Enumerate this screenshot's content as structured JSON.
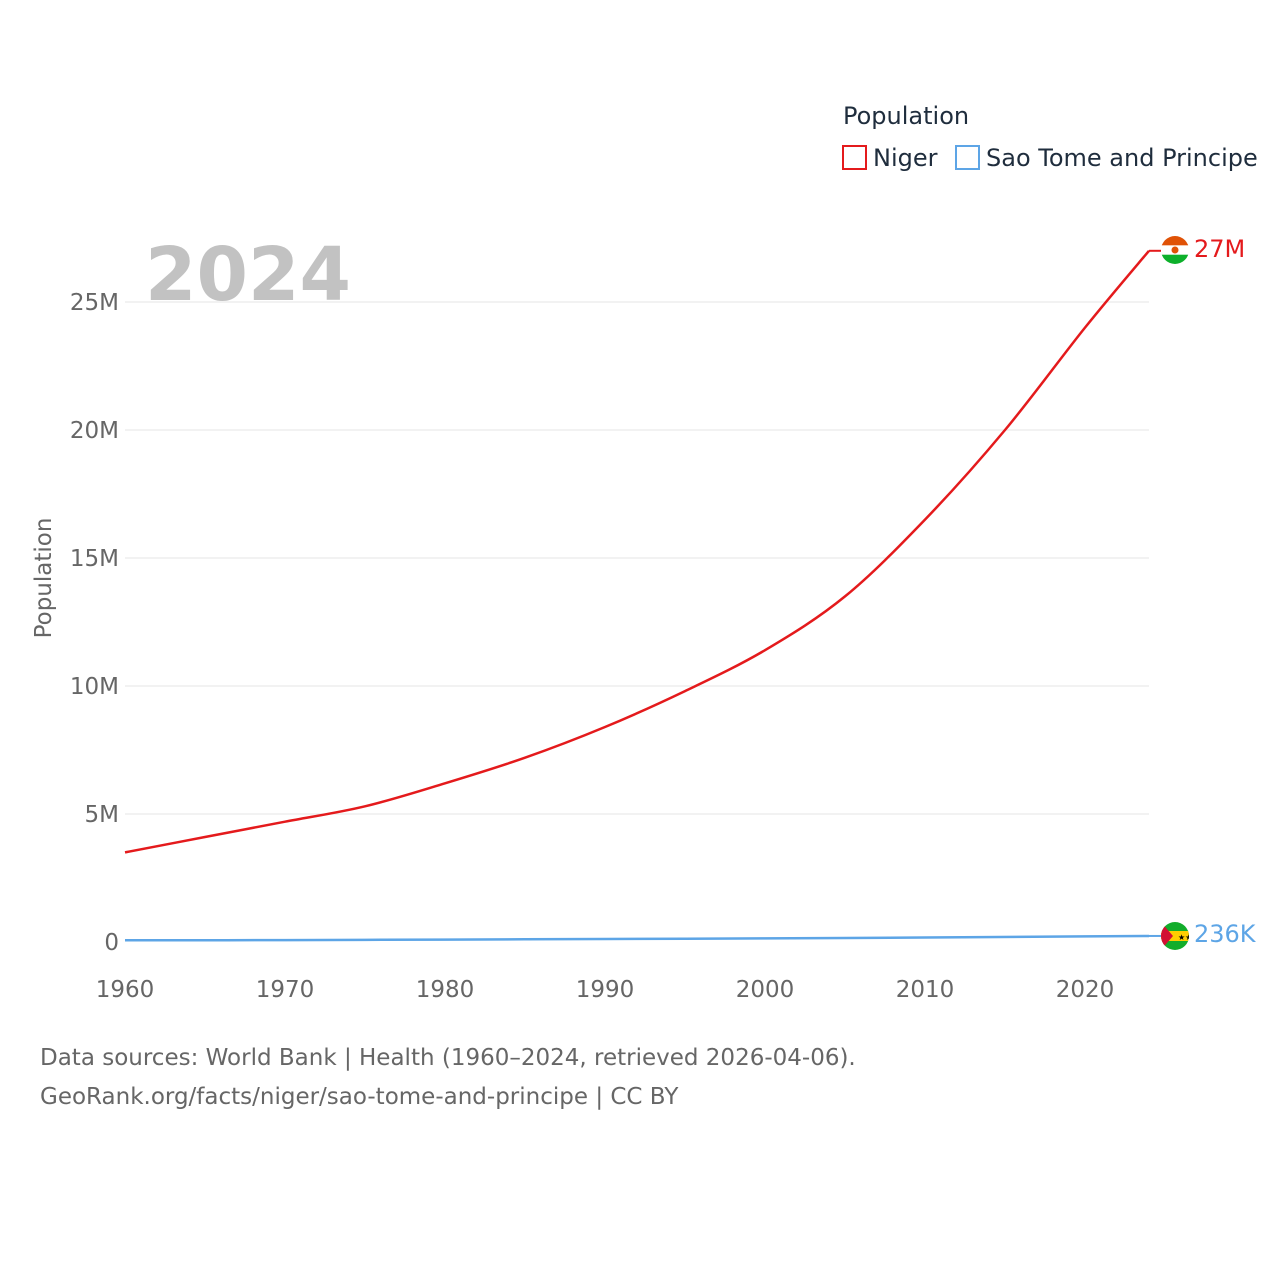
{
  "chart_data": {
    "type": "line",
    "title": "",
    "current_year": "2024",
    "xlabel": "",
    "ylabel": "Population",
    "xlim": [
      1960,
      2024
    ],
    "ylim": [
      0,
      27500000
    ],
    "x_ticks": [
      1960,
      1970,
      1980,
      1990,
      2000,
      2010,
      2020
    ],
    "y_ticks": [
      0,
      5000000,
      10000000,
      15000000,
      20000000,
      25000000
    ],
    "y_tick_labels": [
      "0",
      "5M",
      "10M",
      "15M",
      "20M",
      "25M"
    ],
    "grid": true,
    "legend": {
      "title": "Population",
      "position": "top-right",
      "entries": [
        "Niger",
        "Sao Tome and Principe"
      ]
    },
    "series": [
      {
        "name": "Niger",
        "color": "#e41a1c",
        "end_label": "27M",
        "flag": "niger-flag",
        "x": [
          1960,
          1965,
          1970,
          1975,
          1980,
          1985,
          1990,
          1995,
          2000,
          2005,
          2010,
          2015,
          2020,
          2024
        ],
        "values": [
          3500000,
          4100000,
          4700000,
          5300000,
          6200000,
          7200000,
          8400000,
          9800000,
          11400000,
          13500000,
          16500000,
          20000000,
          24000000,
          27000000
        ]
      },
      {
        "name": "Sao Tome and Principe",
        "color": "#5da5e6",
        "end_label": "236K",
        "flag": "sao-tome-and-principe-flag",
        "x": [
          1960,
          1970,
          1980,
          1990,
          2000,
          2010,
          2020,
          2024
        ],
        "values": [
          65000,
          75000,
          95000,
          117000,
          140000,
          175000,
          219000,
          236000
        ]
      }
    ]
  },
  "footer": {
    "line1": "Data sources: World Bank | Health (1960–2024, retrieved 2026-04-06).",
    "line2": "GeoRank.org/facts/niger/sao-tome-and-principe | CC BY"
  }
}
